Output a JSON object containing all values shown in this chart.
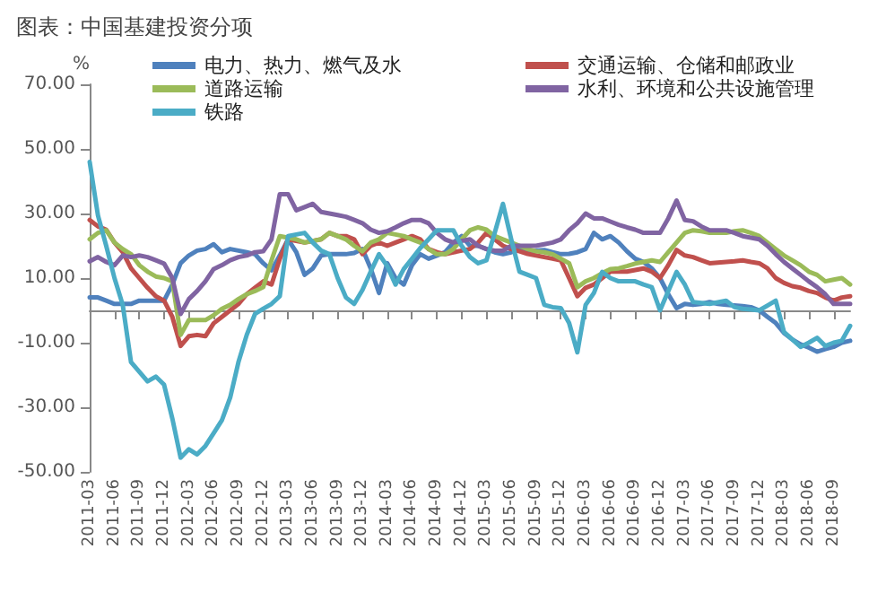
{
  "chart_data": {
    "type": "line",
    "title": "图表：中国基建投资分项",
    "ylabel": "%",
    "categories": [
      "2011-03",
      null,
      null,
      "2011-06",
      null,
      null,
      "2011-09",
      null,
      null,
      "2011-12",
      null,
      null,
      "2012-03",
      null,
      null,
      "2012-06",
      null,
      null,
      "2012-09",
      null,
      null,
      "2012-12",
      null,
      null,
      "2013-03",
      null,
      null,
      "2013-06",
      null,
      null,
      "2013-09",
      null,
      null,
      "2013-12",
      null,
      null,
      "2014-03",
      null,
      null,
      "2014-06",
      null,
      null,
      "2014-09",
      null,
      null,
      "2014-12",
      null,
      null,
      "2015-03",
      null,
      null,
      "2015-06",
      null,
      null,
      "2015-09",
      null,
      null,
      "2015-12",
      null,
      null,
      "2016-03",
      null,
      null,
      "2016-06",
      null,
      null,
      "2016-09",
      null,
      null,
      "2016-12",
      null,
      null,
      "2017-03",
      null,
      null,
      "2017-06",
      null,
      null,
      "2017-09",
      null,
      null,
      "2017-12",
      null,
      null,
      "2018-03",
      null,
      null,
      "2018-06",
      null,
      null,
      "2018-09",
      null,
      null
    ],
    "series": [
      {
        "name": "电力、热力、燃气及水",
        "color": "#4f81bd",
        "values": [
          4,
          4,
          3,
          2,
          2,
          2,
          3,
          3,
          3,
          3,
          8,
          14.6,
          17,
          18.5,
          19,
          20.5,
          18,
          19,
          18.5,
          18,
          17.4,
          14.6,
          12.4,
          17,
          22,
          18,
          11,
          13,
          17,
          17.4,
          17.4,
          17.4,
          17.8,
          19,
          13,
          5.4,
          14.6,
          10,
          8,
          14,
          17.4,
          16,
          17,
          18,
          21,
          23,
          20,
          20,
          19,
          18,
          17.4,
          18,
          19,
          18.5,
          18.5,
          18.7,
          18,
          17.4,
          17.5,
          18,
          19,
          24,
          22,
          23,
          21,
          18.3,
          16,
          15,
          13,
          10,
          5,
          0.7,
          2,
          1.7,
          2,
          2.6,
          2,
          1.7,
          1.5,
          1.3,
          1,
          0,
          -2,
          -3.9,
          -7,
          -9,
          -10.5,
          -11.5,
          -12.8,
          -12,
          -11.3,
          -10,
          -9.4
        ]
      },
      {
        "name": "交通运输、仓储和邮政业",
        "color": "#c0504d",
        "values": [
          28,
          26,
          25,
          21,
          18,
          13,
          10,
          7,
          4.4,
          3,
          -2,
          -11,
          -8,
          -7.6,
          -8,
          -4,
          -2,
          0,
          2,
          5,
          7,
          9,
          8,
          16,
          22,
          21.5,
          21,
          21.5,
          22,
          24,
          23,
          23,
          22,
          17.4,
          20,
          21,
          20,
          21,
          22,
          23,
          22,
          19,
          18,
          17.4,
          18,
          18.5,
          19,
          21,
          24,
          22,
          20,
          19,
          18.3,
          17.5,
          17,
          16.5,
          16,
          15.5,
          10,
          4.4,
          7,
          8,
          10,
          12,
          12,
          12,
          12.5,
          13,
          12,
          10,
          14,
          18.7,
          17,
          16.5,
          15.5,
          14.6,
          14.8,
          15,
          15.2,
          15.5,
          15,
          14.6,
          13,
          10,
          8.5,
          7.5,
          7,
          6,
          5.4,
          4,
          3,
          4,
          4.4
        ]
      },
      {
        "name": "道路运输",
        "color": "#9bbb59",
        "values": [
          22,
          24,
          24.8,
          21,
          19,
          17.4,
          14,
          12,
          10.5,
          10,
          9,
          -7.6,
          -3,
          -3,
          -3,
          -1.5,
          0.5,
          1.7,
          3.5,
          5,
          6,
          7.2,
          15.5,
          23,
          22.5,
          22,
          21,
          21.5,
          22,
          24,
          23,
          22,
          20,
          18.3,
          21,
          22,
          24,
          23.5,
          23,
          22,
          21,
          19,
          17.4,
          17.4,
          19,
          22,
          24.8,
          25.7,
          25,
          23,
          22,
          21,
          20,
          19,
          18.3,
          18,
          17.4,
          16,
          14.6,
          7.2,
          9,
          10,
          11.5,
          12.8,
          13,
          13.7,
          14.5,
          15,
          15.5,
          15,
          18,
          21,
          24,
          24.8,
          24.5,
          24,
          24,
          24,
          24.5,
          24.8,
          24,
          23,
          21,
          19,
          17,
          15.5,
          14,
          12,
          11,
          9,
          9.5,
          10,
          8
        ]
      },
      {
        "name": "水利、环境和公共设施管理",
        "color": "#8064a2",
        "values": [
          15.2,
          16.5,
          15,
          14,
          17,
          16.5,
          17,
          16.5,
          15.5,
          14.5,
          10,
          -1.1,
          3.5,
          6,
          9,
          12.8,
          14,
          15.5,
          16.5,
          17,
          18,
          18.3,
          22,
          36,
          36,
          31,
          32,
          33,
          30.5,
          30,
          29.5,
          29,
          28,
          27,
          25,
          24,
          24.5,
          25.7,
          27,
          28,
          28,
          27,
          24,
          22,
          21,
          21.5,
          22,
          20,
          19,
          18.5,
          18.5,
          20,
          20,
          20,
          20,
          20.5,
          21,
          22,
          24.8,
          27,
          30,
          28.5,
          28.5,
          27.5,
          26.5,
          25.7,
          25,
          24,
          24,
          24,
          28.5,
          34,
          28,
          27.6,
          26,
          24.8,
          24.8,
          24.8,
          24,
          23,
          22.5,
          22,
          20,
          17.4,
          15,
          13,
          11,
          9,
          7.2,
          5,
          2,
          2,
          2
        ]
      },
      {
        "name": "铁路",
        "color": "#4bacc6",
        "values": [
          46,
          29.4,
          20,
          10,
          1.7,
          -16,
          -19,
          -22,
          -20.5,
          -23,
          -33.5,
          -45.6,
          -43,
          -44.6,
          -42,
          -38,
          -34,
          -27,
          -16,
          -7.6,
          -1.1,
          0.5,
          2,
          4.4,
          23,
          23.5,
          24,
          21,
          18.5,
          17.4,
          10,
          4,
          2,
          6.3,
          12,
          17.4,
          13.7,
          8,
          12.8,
          16,
          19.3,
          22,
          24.8,
          24.8,
          24.8,
          20,
          16.5,
          14.6,
          15.5,
          24,
          33,
          22,
          12,
          11,
          10,
          1.7,
          1,
          0.7,
          -3.9,
          -13,
          1.7,
          5.4,
          11.9,
          10,
          9,
          9,
          9,
          8,
          7.2,
          0,
          6,
          11.9,
          8,
          2.6,
          2.3,
          2,
          2.5,
          3,
          1,
          0.5,
          0.3,
          0,
          1.5,
          3,
          -6.7,
          -9,
          -11.3,
          -10,
          -8.5,
          -11,
          -10,
          -9.4,
          -4.8
        ]
      }
    ],
    "ylim": [
      -50,
      70
    ],
    "yticks": [
      {
        "value": -50,
        "label": "-50.00"
      },
      {
        "value": -30,
        "label": "-30.00"
      },
      {
        "value": -10,
        "label": "-10.00"
      },
      {
        "value": 10,
        "label": "10.00"
      },
      {
        "value": 30,
        "label": "30.00"
      },
      {
        "value": 50,
        "label": "50.00"
      },
      {
        "value": 70,
        "label": "70.00"
      }
    ],
    "grid": false,
    "legend": "top",
    "marker": "none",
    "line_style": "solid"
  }
}
